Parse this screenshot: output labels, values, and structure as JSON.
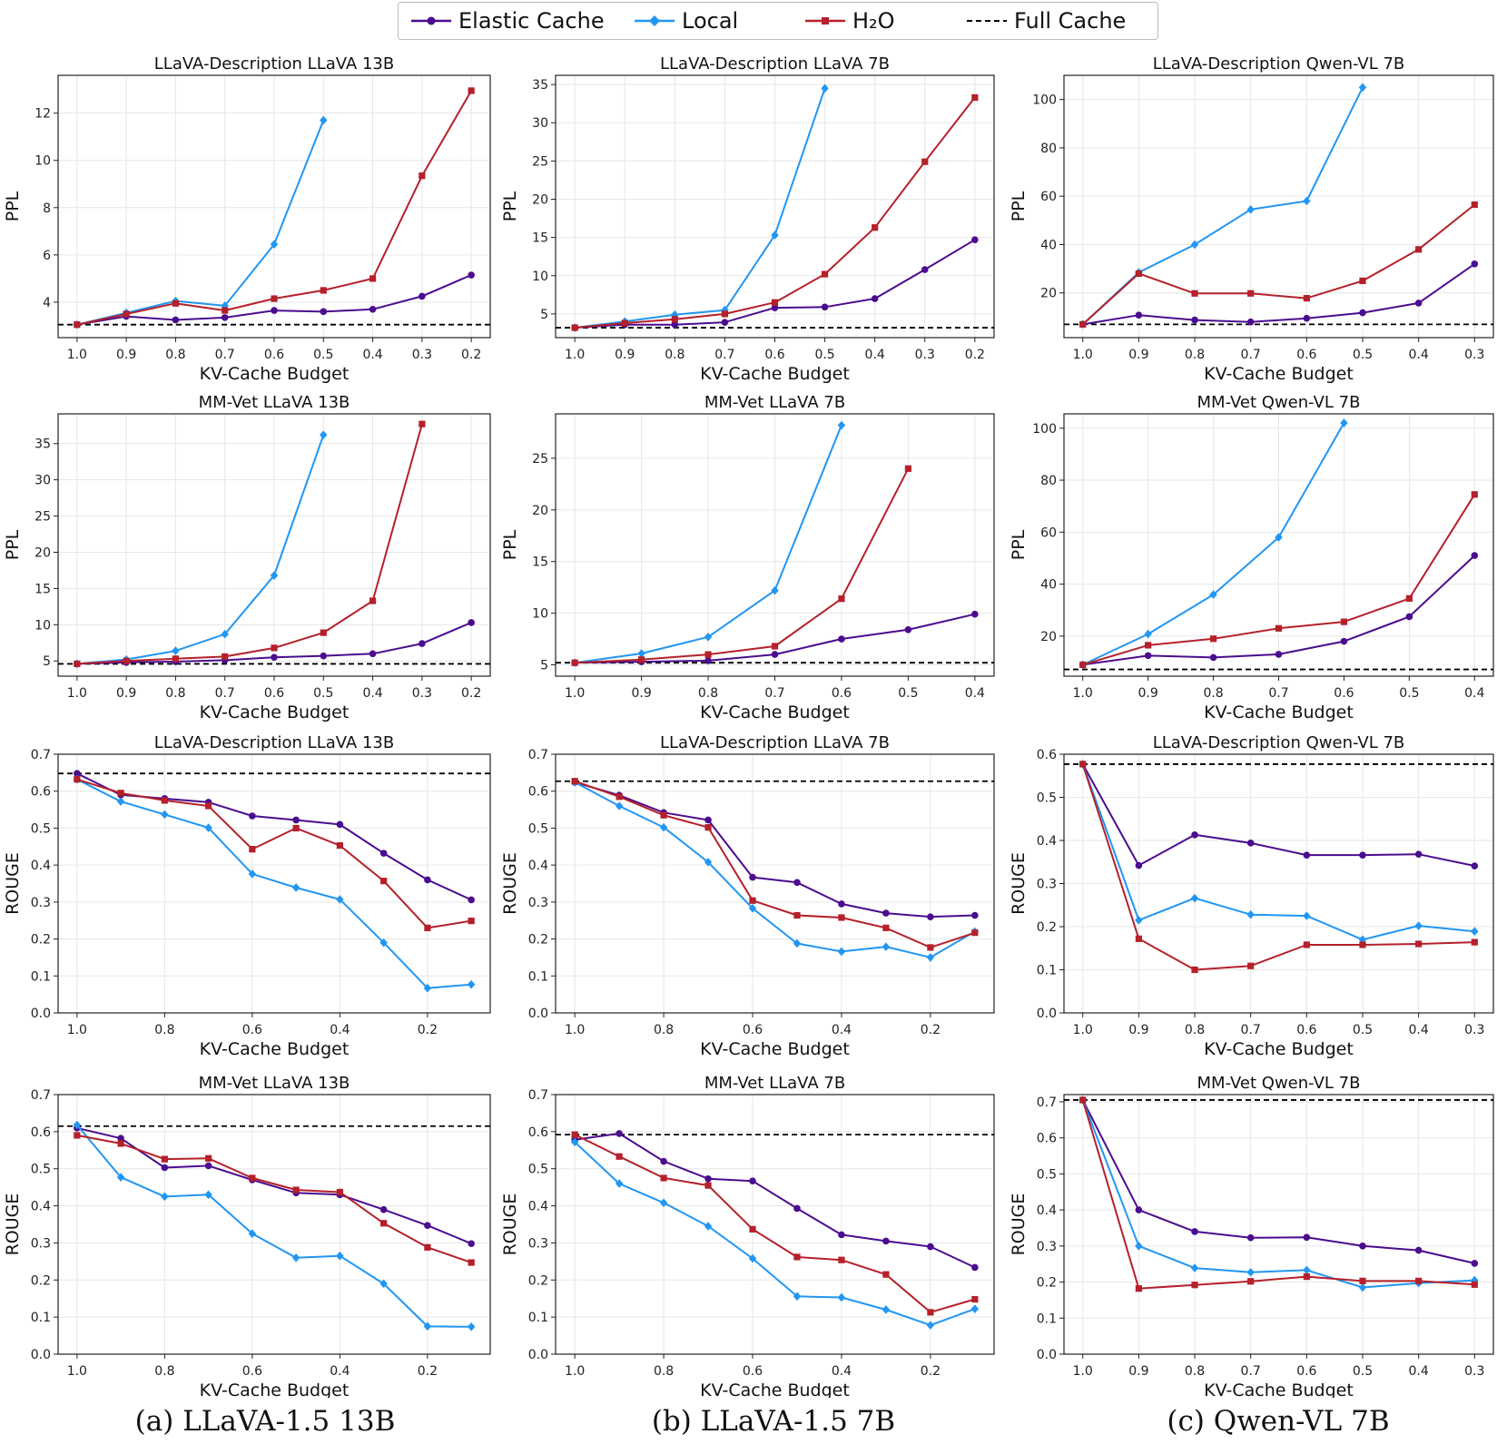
{
  "legend": [
    {
      "name": "Elastic Cache",
      "color": "#4b0c8f",
      "marker": "circle",
      "dash": false
    },
    {
      "name": "Local",
      "color": "#2196f3",
      "marker": "diamond",
      "dash": false
    },
    {
      "name": "H₂O",
      "color": "#b5202a",
      "marker": "square",
      "dash": false
    },
    {
      "name": "Full Cache",
      "color": "#000000",
      "marker": "none",
      "dash": true
    }
  ],
  "captions": [
    "(a) LLaVA-1.5  13B",
    "(b) LLaVA-1.5  7B",
    "(c) Qwen-VL 7B"
  ],
  "chart_data": [
    {
      "type": "line",
      "title": "LLaVA-Description LLaVA 13B",
      "xlabel": "KV-Cache Budget",
      "ylabel": "PPL",
      "x": [
        1.0,
        0.9,
        0.8,
        0.7,
        0.6,
        0.5,
        0.4,
        0.3,
        0.2
      ],
      "xticks": [
        1.0,
        0.9,
        0.8,
        0.7,
        0.6,
        0.5,
        0.4,
        0.3,
        0.2
      ],
      "xtick_labels": [
        "1.0",
        "0.9",
        "0.8",
        "0.7",
        "0.6",
        "0.5",
        "0.4",
        "0.3",
        "0.2"
      ],
      "ylim": [
        2.5,
        13.6
      ],
      "yticks": [
        4,
        6,
        8,
        10,
        12
      ],
      "ytick_labels": [
        "4",
        "6",
        "8",
        "10",
        "12"
      ],
      "full_cache": 3.05,
      "series": [
        {
          "name": "Elastic Cache",
          "values": [
            3.05,
            3.4,
            3.25,
            3.35,
            3.65,
            3.6,
            3.7,
            4.25,
            5.15
          ]
        },
        {
          "name": "Local",
          "values": [
            3.05,
            3.55,
            4.05,
            3.85,
            6.45,
            11.7,
            null,
            null,
            null
          ]
        },
        {
          "name": "H2O",
          "values": [
            3.05,
            3.5,
            3.95,
            3.65,
            4.15,
            4.5,
            5.0,
            9.35,
            12.95
          ]
        }
      ]
    },
    {
      "type": "line",
      "title": "LLaVA-Description LLaVA 7B",
      "xlabel": "KV-Cache Budget",
      "ylabel": "PPL",
      "x": [
        1.0,
        0.9,
        0.8,
        0.7,
        0.6,
        0.5,
        0.4,
        0.3,
        0.2
      ],
      "xticks": [
        1.0,
        0.9,
        0.8,
        0.7,
        0.6,
        0.5,
        0.4,
        0.3,
        0.2
      ],
      "xtick_labels": [
        "1.0",
        "0.9",
        "0.8",
        "0.7",
        "0.6",
        "0.5",
        "0.4",
        "0.3",
        "0.2"
      ],
      "ylim": [
        1.9,
        36.2
      ],
      "yticks": [
        5,
        10,
        15,
        20,
        25,
        30,
        35
      ],
      "ytick_labels": [
        "5",
        "10",
        "15",
        "20",
        "25",
        "30",
        "35"
      ],
      "full_cache": 3.2,
      "series": [
        {
          "name": "Elastic Cache",
          "values": [
            3.2,
            3.6,
            3.6,
            3.9,
            5.8,
            5.9,
            7.0,
            10.8,
            14.7
          ]
        },
        {
          "name": "Local",
          "values": [
            3.2,
            4.0,
            4.9,
            5.5,
            15.3,
            34.5,
            null,
            null,
            null
          ]
        },
        {
          "name": "H2O",
          "values": [
            3.2,
            3.8,
            4.3,
            5.0,
            6.5,
            10.2,
            16.3,
            24.9,
            33.3
          ]
        }
      ]
    },
    {
      "type": "line",
      "title": "LLaVA-Description Qwen-VL 7B",
      "xlabel": "KV-Cache Budget",
      "ylabel": "PPL",
      "x": [
        1.0,
        0.9,
        0.8,
        0.7,
        0.6,
        0.5,
        0.4,
        0.3
      ],
      "xticks": [
        1.0,
        0.9,
        0.8,
        0.7,
        0.6,
        0.5,
        0.4,
        0.3
      ],
      "xtick_labels": [
        "1.0",
        "0.9",
        "0.8",
        "0.7",
        "0.6",
        "0.5",
        "0.4",
        "0.3"
      ],
      "ylim": [
        1.5,
        110
      ],
      "yticks": [
        20,
        40,
        60,
        80,
        100
      ],
      "ytick_labels": [
        "20",
        "40",
        "60",
        "80",
        "100"
      ],
      "full_cache": 7.0,
      "series": [
        {
          "name": "Elastic Cache",
          "values": [
            7.0,
            10.8,
            8.8,
            8.0,
            9.5,
            11.8,
            15.8,
            32.0
          ]
        },
        {
          "name": "Local",
          "values": [
            7.0,
            28.5,
            40.0,
            54.5,
            58.0,
            105.0,
            null,
            null
          ]
        },
        {
          "name": "H2O",
          "values": [
            7.0,
            28.0,
            19.8,
            19.8,
            17.8,
            25.0,
            38.0,
            56.5
          ]
        }
      ]
    },
    {
      "type": "line",
      "title": "MM-Vet LLaVA 13B",
      "xlabel": "KV-Cache Budget",
      "ylabel": "PPL",
      "x": [
        1.0,
        0.9,
        0.8,
        0.7,
        0.6,
        0.5,
        0.4,
        0.3,
        0.2
      ],
      "xticks": [
        1.0,
        0.9,
        0.8,
        0.7,
        0.6,
        0.5,
        0.4,
        0.3,
        0.2
      ],
      "xtick_labels": [
        "1.0",
        "0.9",
        "0.8",
        "0.7",
        "0.6",
        "0.5",
        "0.4",
        "0.3",
        "0.2"
      ],
      "ylim": [
        2.9,
        39.1
      ],
      "yticks": [
        5,
        10,
        15,
        20,
        25,
        30,
        35
      ],
      "ytick_labels": [
        "5",
        "10",
        "15",
        "20",
        "25",
        "30",
        "35"
      ],
      "full_cache": 4.6,
      "series": [
        {
          "name": "Elastic Cache",
          "values": [
            4.6,
            4.8,
            4.9,
            5.1,
            5.5,
            5.7,
            6.0,
            7.4,
            10.3
          ]
        },
        {
          "name": "Local",
          "values": [
            4.6,
            5.2,
            6.4,
            8.7,
            16.8,
            36.2,
            null,
            null,
            null
          ]
        },
        {
          "name": "H2O",
          "values": [
            4.6,
            5.0,
            5.3,
            5.6,
            6.8,
            8.9,
            13.3,
            37.7,
            null
          ]
        }
      ]
    },
    {
      "type": "line",
      "title": "MM-Vet LLaVA 7B",
      "xlabel": "KV-Cache Budget",
      "ylabel": "PPL",
      "x": [
        1.0,
        0.9,
        0.8,
        0.7,
        0.6,
        0.5,
        0.4
      ],
      "xticks": [
        1.0,
        0.9,
        0.8,
        0.7,
        0.6,
        0.5,
        0.4
      ],
      "xtick_labels": [
        "1.0",
        "0.9",
        "0.8",
        "0.7",
        "0.6",
        "0.5",
        "0.4"
      ],
      "ylim": [
        3.9,
        29.3
      ],
      "yticks": [
        5,
        10,
        15,
        20,
        25
      ],
      "ytick_labels": [
        "5",
        "10",
        "15",
        "20",
        "25"
      ],
      "full_cache": 5.2,
      "series": [
        {
          "name": "Elastic Cache",
          "values": [
            5.2,
            5.3,
            5.4,
            6.0,
            7.5,
            8.4,
            9.9
          ]
        },
        {
          "name": "Local",
          "values": [
            5.2,
            6.1,
            7.7,
            12.2,
            28.2,
            null,
            null
          ]
        },
        {
          "name": "H2O",
          "values": [
            5.2,
            5.5,
            6.0,
            6.8,
            11.4,
            24.0,
            null
          ]
        }
      ]
    },
    {
      "type": "line",
      "title": "MM-Vet Qwen-VL 7B",
      "xlabel": "KV-Cache Budget",
      "ylabel": "PPL",
      "x": [
        1.0,
        0.9,
        0.8,
        0.7,
        0.6,
        0.5,
        0.4
      ],
      "xticks": [
        1.0,
        0.9,
        0.8,
        0.7,
        0.6,
        0.5,
        0.4
      ],
      "xtick_labels": [
        "1.0",
        "0.9",
        "0.8",
        "0.7",
        "0.6",
        "0.5",
        "0.4"
      ],
      "ylim": [
        4.6,
        105.5
      ],
      "yticks": [
        20,
        40,
        60,
        80,
        100
      ],
      "ytick_labels": [
        "20",
        "40",
        "60",
        "80",
        "100"
      ],
      "full_cache": 7.2,
      "series": [
        {
          "name": "Elastic Cache",
          "values": [
            9.0,
            12.5,
            11.8,
            13.0,
            18.0,
            27.5,
            51.0
          ]
        },
        {
          "name": "Local",
          "values": [
            9.0,
            20.8,
            36.0,
            58.0,
            102.0,
            null,
            null
          ]
        },
        {
          "name": "H2O",
          "values": [
            9.0,
            16.5,
            19.0,
            23.0,
            25.5,
            34.5,
            74.5
          ]
        }
      ]
    },
    {
      "type": "line",
      "title": "LLaVA-Description LLaVA 13B",
      "xlabel": "KV-Cache Budget",
      "ylabel": "ROUGE",
      "x": [
        1.0,
        0.9,
        0.8,
        0.7,
        0.6,
        0.5,
        0.4,
        0.3,
        0.2,
        0.1
      ],
      "xticks": [
        1.0,
        0.8,
        0.6,
        0.4,
        0.2
      ],
      "xtick_labels": [
        "1.0",
        "0.8",
        "0.6",
        "0.4",
        "0.2"
      ],
      "ylim": [
        0,
        0.7
      ],
      "yticks": [
        0.0,
        0.1,
        0.2,
        0.3,
        0.4,
        0.5,
        0.6,
        0.7
      ],
      "ytick_labels": [
        "0.0",
        "0.1",
        "0.2",
        "0.3",
        "0.4",
        "0.5",
        "0.6",
        "0.7"
      ],
      "full_cache": 0.648,
      "series": [
        {
          "name": "Elastic Cache",
          "values": [
            0.648,
            0.59,
            0.58,
            0.57,
            0.533,
            0.522,
            0.51,
            0.432,
            0.36,
            0.306
          ]
        },
        {
          "name": "Local",
          "values": [
            0.632,
            0.572,
            0.537,
            0.501,
            0.376,
            0.339,
            0.307,
            0.19,
            0.067,
            0.077
          ]
        },
        {
          "name": "H2O",
          "values": [
            0.632,
            0.595,
            0.575,
            0.56,
            0.443,
            0.5,
            0.453,
            0.357,
            0.23,
            0.249
          ]
        }
      ]
    },
    {
      "type": "line",
      "title": "LLaVA-Description LLaVA 7B",
      "xlabel": "KV-Cache Budget",
      "ylabel": "ROUGE",
      "x": [
        1.0,
        0.9,
        0.8,
        0.7,
        0.6,
        0.5,
        0.4,
        0.3,
        0.2,
        0.1
      ],
      "xticks": [
        1.0,
        0.8,
        0.6,
        0.4,
        0.2
      ],
      "xtick_labels": [
        "1.0",
        "0.8",
        "0.6",
        "0.4",
        "0.2"
      ],
      "ylim": [
        0,
        0.7
      ],
      "yticks": [
        0.0,
        0.1,
        0.2,
        0.3,
        0.4,
        0.5,
        0.6,
        0.7
      ],
      "ytick_labels": [
        "0.0",
        "0.1",
        "0.2",
        "0.3",
        "0.4",
        "0.5",
        "0.6",
        "0.7"
      ],
      "full_cache": 0.627,
      "series": [
        {
          "name": "Elastic Cache",
          "values": [
            0.624,
            0.589,
            0.542,
            0.522,
            0.367,
            0.353,
            0.295,
            0.27,
            0.26,
            0.264
          ]
        },
        {
          "name": "Local",
          "values": [
            0.624,
            0.56,
            0.502,
            0.408,
            0.283,
            0.188,
            0.166,
            0.179,
            0.15,
            0.22
          ]
        },
        {
          "name": "H2O",
          "values": [
            0.627,
            0.585,
            0.535,
            0.502,
            0.304,
            0.264,
            0.258,
            0.23,
            0.177,
            0.217
          ]
        }
      ]
    },
    {
      "type": "line",
      "title": "LLaVA-Description Qwen-VL 7B",
      "xlabel": "KV-Cache Budget",
      "ylabel": "ROUGE",
      "x": [
        1.0,
        0.9,
        0.8,
        0.7,
        0.6,
        0.5,
        0.4,
        0.3
      ],
      "xticks": [
        1.0,
        0.9,
        0.8,
        0.7,
        0.6,
        0.5,
        0.4,
        0.3
      ],
      "xtick_labels": [
        "1.0",
        "0.9",
        "0.8",
        "0.7",
        "0.6",
        "0.5",
        "0.4",
        "0.3"
      ],
      "ylim": [
        0,
        0.6
      ],
      "yticks": [
        0.0,
        0.1,
        0.2,
        0.3,
        0.4,
        0.5,
        0.6
      ],
      "ytick_labels": [
        "0.0",
        "0.1",
        "0.2",
        "0.3",
        "0.4",
        "0.5",
        "0.6"
      ],
      "full_cache": 0.577,
      "series": [
        {
          "name": "Elastic Cache",
          "values": [
            0.577,
            0.342,
            0.413,
            0.394,
            0.366,
            0.366,
            0.368,
            0.341
          ]
        },
        {
          "name": "Local",
          "values": [
            0.577,
            0.215,
            0.266,
            0.228,
            0.225,
            0.17,
            0.202,
            0.189
          ]
        },
        {
          "name": "H2O",
          "values": [
            0.577,
            0.172,
            0.1,
            0.109,
            0.158,
            0.158,
            0.16,
            0.164
          ]
        }
      ]
    },
    {
      "type": "line",
      "title": "MM-Vet LLaVA 13B",
      "xlabel": "KV-Cache Budget",
      "ylabel": "ROUGE",
      "x": [
        1.0,
        0.9,
        0.8,
        0.7,
        0.6,
        0.5,
        0.4,
        0.3,
        0.2,
        0.1
      ],
      "xticks": [
        1.0,
        0.8,
        0.6,
        0.4,
        0.2
      ],
      "xtick_labels": [
        "1.0",
        "0.8",
        "0.6",
        "0.4",
        "0.2"
      ],
      "ylim": [
        0,
        0.7
      ],
      "yticks": [
        0.0,
        0.1,
        0.2,
        0.3,
        0.4,
        0.5,
        0.6,
        0.7
      ],
      "ytick_labels": [
        "0.0",
        "0.1",
        "0.2",
        "0.3",
        "0.4",
        "0.5",
        "0.6",
        "0.7"
      ],
      "full_cache": 0.615,
      "series": [
        {
          "name": "Elastic Cache",
          "values": [
            0.61,
            0.582,
            0.503,
            0.508,
            0.47,
            0.435,
            0.43,
            0.39,
            0.347,
            0.298
          ]
        },
        {
          "name": "Local",
          "values": [
            0.618,
            0.477,
            0.425,
            0.43,
            0.325,
            0.26,
            0.265,
            0.19,
            0.075,
            0.074
          ]
        },
        {
          "name": "H2O",
          "values": [
            0.59,
            0.568,
            0.526,
            0.528,
            0.475,
            0.443,
            0.437,
            0.353,
            0.288,
            0.247
          ]
        }
      ]
    },
    {
      "type": "line",
      "title": "MM-Vet LLaVA 7B",
      "xlabel": "KV-Cache Budget",
      "ylabel": "ROUGE",
      "x": [
        1.0,
        0.9,
        0.8,
        0.7,
        0.6,
        0.5,
        0.4,
        0.3,
        0.2,
        0.1
      ],
      "xticks": [
        1.0,
        0.8,
        0.6,
        0.4,
        0.2
      ],
      "xtick_labels": [
        "1.0",
        "0.8",
        "0.6",
        "0.4",
        "0.2"
      ],
      "ylim": [
        0,
        0.7
      ],
      "yticks": [
        0.0,
        0.1,
        0.2,
        0.3,
        0.4,
        0.5,
        0.6,
        0.7
      ],
      "ytick_labels": [
        "0.0",
        "0.1",
        "0.2",
        "0.3",
        "0.4",
        "0.5",
        "0.6",
        "0.7"
      ],
      "full_cache": 0.592,
      "series": [
        {
          "name": "Elastic Cache",
          "values": [
            0.578,
            0.595,
            0.52,
            0.473,
            0.467,
            0.393,
            0.322,
            0.305,
            0.29,
            0.234
          ]
        },
        {
          "name": "Local",
          "values": [
            0.572,
            0.46,
            0.408,
            0.345,
            0.258,
            0.156,
            0.153,
            0.12,
            0.078,
            0.122
          ]
        },
        {
          "name": "H2O",
          "values": [
            0.592,
            0.533,
            0.475,
            0.455,
            0.337,
            0.262,
            0.254,
            0.215,
            0.113,
            0.148
          ]
        }
      ]
    },
    {
      "type": "line",
      "title": "MM-Vet Qwen-VL 7B",
      "xlabel": "KV-Cache Budget",
      "ylabel": "ROUGE",
      "x": [
        1.0,
        0.9,
        0.8,
        0.7,
        0.6,
        0.5,
        0.4,
        0.3
      ],
      "xticks": [
        1.0,
        0.9,
        0.8,
        0.7,
        0.6,
        0.5,
        0.4,
        0.3
      ],
      "xtick_labels": [
        "1.0",
        "0.9",
        "0.8",
        "0.7",
        "0.6",
        "0.5",
        "0.4",
        "0.3"
      ],
      "ylim": [
        0,
        0.72
      ],
      "yticks": [
        0.0,
        0.1,
        0.2,
        0.3,
        0.4,
        0.5,
        0.6,
        0.7
      ],
      "ytick_labels": [
        "0.0",
        "0.1",
        "0.2",
        "0.3",
        "0.4",
        "0.5",
        "0.6",
        "0.7"
      ],
      "full_cache": 0.705,
      "series": [
        {
          "name": "Elastic Cache",
          "values": [
            0.705,
            0.4,
            0.34,
            0.323,
            0.324,
            0.3,
            0.288,
            0.252
          ]
        },
        {
          "name": "Local",
          "values": [
            0.705,
            0.3,
            0.239,
            0.227,
            0.233,
            0.185,
            0.197,
            0.205
          ]
        },
        {
          "name": "H2O",
          "values": [
            0.705,
            0.182,
            0.192,
            0.202,
            0.215,
            0.203,
            0.203,
            0.193
          ]
        }
      ]
    }
  ]
}
